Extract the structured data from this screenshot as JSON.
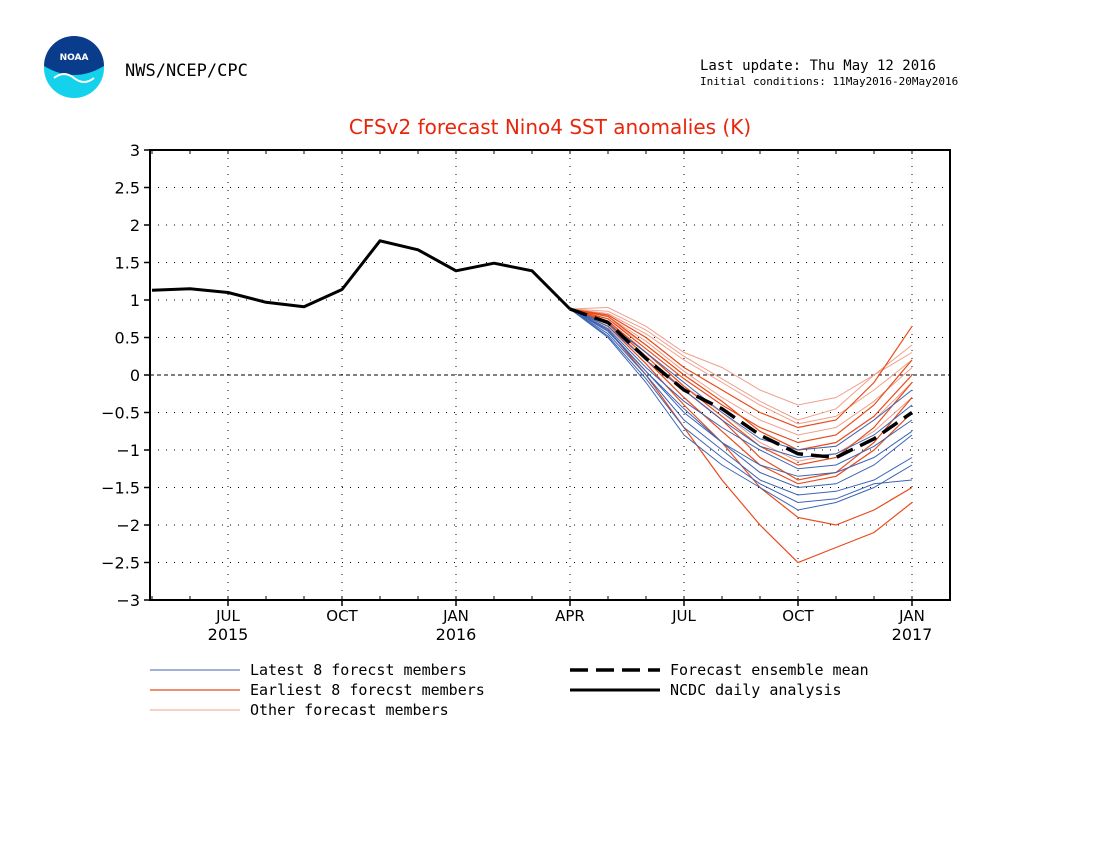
{
  "header": {
    "agency": "NWS/NCEP/CPC",
    "noaa_logo_text": "NOAA",
    "last_update": "Last update: Thu May 12 2016",
    "initial_conditions": "Initial conditions: 11May2016-20May2016"
  },
  "colors": {
    "title": "#e8260c",
    "latest": "#3c64b4",
    "earliest": "#e84c1c",
    "other": "#f0a08c",
    "analysis": "#000000",
    "logo_dark": "#0a3c8c",
    "logo_light": "#14d2ec"
  },
  "chart_data": {
    "type": "line",
    "title": "CFSv2 forecast Nino4 SST anomalies (K)",
    "xlabel": "",
    "ylabel": "",
    "ylim": [
      -3,
      3
    ],
    "xlim": [
      "2015-05",
      "2017-01"
    ],
    "grid": true,
    "y_ticks": [
      "3",
      "2.5",
      "2",
      "1.5",
      "1",
      "0.5",
      "0",
      "−0.5",
      "−1",
      "−1.5",
      "−2",
      "−2.5",
      "−3"
    ],
    "x_ticks": [
      {
        "month": "JUL",
        "year": "2015"
      },
      {
        "month": "OCT",
        "year": ""
      },
      {
        "month": "JAN",
        "year": "2016"
      },
      {
        "month": "APR",
        "year": ""
      },
      {
        "month": "JUL",
        "year": ""
      },
      {
        "month": "OCT",
        "year": ""
      },
      {
        "month": "JAN",
        "year": "2017"
      }
    ],
    "x_tick_months": [
      "2015-07",
      "2015-10",
      "2016-01",
      "2016-04",
      "2016-07",
      "2016-10",
      "2017-01"
    ],
    "forecast_months": [
      "2016-04",
      "2016-05",
      "2016-06",
      "2016-07",
      "2016-08",
      "2016-09",
      "2016-10",
      "2016-11",
      "2016-12",
      "2017-01"
    ],
    "analysis": {
      "name": "NCDC daily analysis",
      "x": [
        "2015-05",
        "2015-06",
        "2015-07",
        "2015-08",
        "2015-09",
        "2015-10",
        "2015-11",
        "2015-12",
        "2016-01",
        "2016-02",
        "2016-03",
        "2016-04"
      ],
      "y": [
        1.13,
        1.15,
        1.1,
        0.97,
        0.91,
        1.14,
        1.79,
        1.67,
        1.39,
        1.49,
        1.39,
        0.88
      ]
    },
    "ensemble_mean": {
      "name": "Forecast ensemble mean",
      "y": [
        0.88,
        0.7,
        0.22,
        -0.2,
        -0.45,
        -0.8,
        -1.05,
        -1.1,
        -0.85,
        -0.5
      ]
    },
    "latest_members": {
      "name": "Latest 8 forecst members",
      "series": [
        [
          0.88,
          0.6,
          0.05,
          -0.5,
          -0.9,
          -1.2,
          -1.35,
          -1.3,
          -1.1,
          -0.75
        ],
        [
          0.88,
          0.55,
          0.0,
          -0.6,
          -1.0,
          -1.4,
          -1.6,
          -1.55,
          -1.4,
          -1.1
        ],
        [
          0.88,
          0.65,
          0.2,
          -0.2,
          -0.6,
          -0.95,
          -1.1,
          -1.05,
          -0.8,
          -0.4
        ],
        [
          0.88,
          0.5,
          -0.1,
          -0.8,
          -1.2,
          -1.5,
          -1.8,
          -1.7,
          -1.5,
          -1.2
        ],
        [
          0.88,
          0.62,
          0.1,
          -0.35,
          -0.7,
          -1.0,
          -1.25,
          -1.2,
          -0.95,
          -0.6
        ],
        [
          0.88,
          0.58,
          0.05,
          -0.45,
          -0.9,
          -1.3,
          -1.5,
          -1.45,
          -1.2,
          -0.8
        ],
        [
          0.88,
          0.68,
          0.3,
          -0.1,
          -0.5,
          -0.85,
          -1.0,
          -0.95,
          -0.6,
          -0.2
        ],
        [
          0.88,
          0.52,
          -0.05,
          -0.7,
          -1.1,
          -1.45,
          -1.7,
          -1.65,
          -1.45,
          -1.4
        ]
      ]
    },
    "earliest_members": {
      "name": "Earliest 8 forecst members",
      "series": [
        [
          0.88,
          0.75,
          0.35,
          -0.05,
          -0.4,
          -0.7,
          -0.9,
          -0.8,
          -0.4,
          0.2
        ],
        [
          0.88,
          0.8,
          0.5,
          0.1,
          -0.2,
          -0.5,
          -0.7,
          -0.6,
          -0.1,
          0.65
        ],
        [
          0.88,
          0.7,
          0.25,
          -0.2,
          -0.6,
          -1.1,
          -1.4,
          -1.3,
          -0.9,
          -0.3
        ],
        [
          0.88,
          0.65,
          0.15,
          -0.4,
          -0.9,
          -1.5,
          -1.9,
          -2.0,
          -1.8,
          -1.5
        ],
        [
          0.88,
          0.6,
          0.0,
          -0.7,
          -1.4,
          -2.0,
          -2.5,
          -2.3,
          -2.1,
          -1.7
        ],
        [
          0.88,
          0.72,
          0.3,
          -0.15,
          -0.55,
          -0.95,
          -1.2,
          -1.1,
          -0.7,
          -0.1
        ],
        [
          0.88,
          0.68,
          0.2,
          -0.3,
          -0.75,
          -1.2,
          -1.45,
          -1.35,
          -1.0,
          -0.5
        ],
        [
          0.88,
          0.78,
          0.4,
          0.0,
          -0.35,
          -0.75,
          -1.0,
          -0.9,
          -0.55,
          0.0
        ]
      ]
    },
    "other_members": {
      "name": "Other forecast members",
      "series": [
        [
          0.88,
          0.85,
          0.6,
          0.25,
          -0.05,
          -0.35,
          -0.6,
          -0.45,
          0.0,
          0.4
        ],
        [
          0.88,
          0.82,
          0.55,
          0.2,
          -0.1,
          -0.4,
          -0.65,
          -0.55,
          -0.2,
          0.2
        ],
        [
          0.88,
          0.78,
          0.45,
          0.05,
          -0.3,
          -0.6,
          -0.8,
          -0.7,
          -0.35,
          0.1
        ],
        [
          0.88,
          0.9,
          0.65,
          0.3,
          0.1,
          -0.2,
          -0.4,
          -0.3,
          0.0,
          0.3
        ],
        [
          0.88,
          0.75,
          0.4,
          0.0,
          -0.35,
          -0.75,
          -1.0,
          -0.95,
          -0.6,
          -0.1
        ],
        [
          0.88,
          0.72,
          0.3,
          -0.15,
          -0.5,
          -0.9,
          -1.15,
          -1.05,
          -0.75,
          -0.3
        ]
      ]
    },
    "legend": [
      {
        "label": "Latest 8 forecst members",
        "style": "latest"
      },
      {
        "label": "Forecast ensemble mean",
        "style": "mean"
      },
      {
        "label": "Earliest 8 forecst members",
        "style": "earliest"
      },
      {
        "label": "NCDC daily analysis",
        "style": "analysis"
      },
      {
        "label": "Other forecast members",
        "style": "other"
      }
    ],
    "legend_position": "bottom"
  }
}
